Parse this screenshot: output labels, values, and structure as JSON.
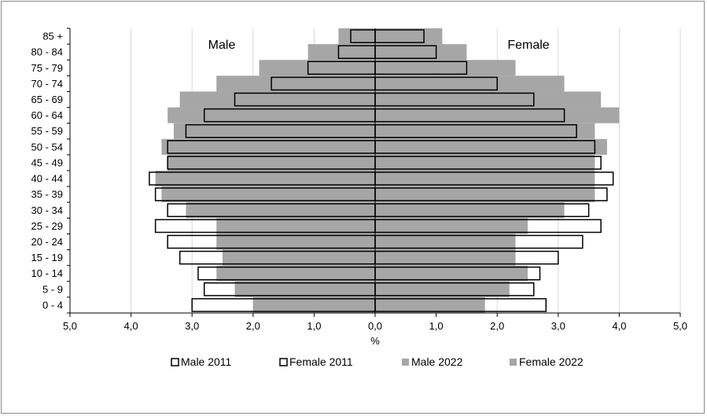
{
  "chart_data": {
    "type": "bar",
    "orientation": "horizontal",
    "title": "",
    "xlabel": "%",
    "ylabel": "",
    "xlim": [
      -5,
      5
    ],
    "x_ticks": [
      -5,
      -4,
      -3,
      -2,
      -1,
      0,
      1,
      2,
      3,
      4,
      5
    ],
    "x_tick_labels": [
      "5,0",
      "4,0",
      "3,0",
      "2,0",
      "1,0",
      "0,0",
      "1,0",
      "2,0",
      "3,0",
      "4,0",
      "5,0"
    ],
    "grid": "vertical",
    "annotations": {
      "male": "Male",
      "female": "Female"
    },
    "legend_position": "bottom",
    "categories": [
      "0 - 4",
      "5 - 9",
      "10 - 14",
      "15 - 19",
      "20 - 24",
      "25 - 29",
      "30 - 34",
      "35 - 39",
      "40 - 44",
      "45 - 49",
      "50 - 54",
      "55 - 59",
      "60 - 64",
      "65 - 69",
      "70 - 74",
      "75 - 79",
      "80 - 84",
      "85 +"
    ],
    "series": [
      {
        "name": "Male 2011",
        "color": "#ffffff",
        "stroke": "#000000",
        "values": [
          3.0,
          2.8,
          2.9,
          3.2,
          3.4,
          3.6,
          3.4,
          3.6,
          3.7,
          3.4,
          3.4,
          3.1,
          2.8,
          2.3,
          1.7,
          1.1,
          0.6,
          0.4
        ]
      },
      {
        "name": "Female 2011",
        "color": "#ffffff",
        "stroke": "#000000",
        "values": [
          2.8,
          2.6,
          2.7,
          3.0,
          3.4,
          3.7,
          3.5,
          3.8,
          3.9,
          3.7,
          3.6,
          3.3,
          3.1,
          2.6,
          2.0,
          1.5,
          1.0,
          0.8
        ]
      },
      {
        "name": "Male 2022",
        "color": "#a6a6a6",
        "values": [
          2.0,
          2.3,
          2.6,
          2.5,
          2.6,
          2.6,
          3.1,
          3.5,
          3.6,
          3.4,
          3.5,
          3.3,
          3.4,
          3.2,
          2.6,
          1.9,
          1.1,
          0.6
        ]
      },
      {
        "name": "Female 2022",
        "color": "#a6a6a6",
        "values": [
          1.8,
          2.2,
          2.5,
          2.3,
          2.3,
          2.5,
          3.1,
          3.6,
          3.6,
          3.6,
          3.8,
          3.6,
          4.0,
          3.7,
          3.1,
          2.3,
          1.5,
          1.1
        ]
      }
    ]
  }
}
